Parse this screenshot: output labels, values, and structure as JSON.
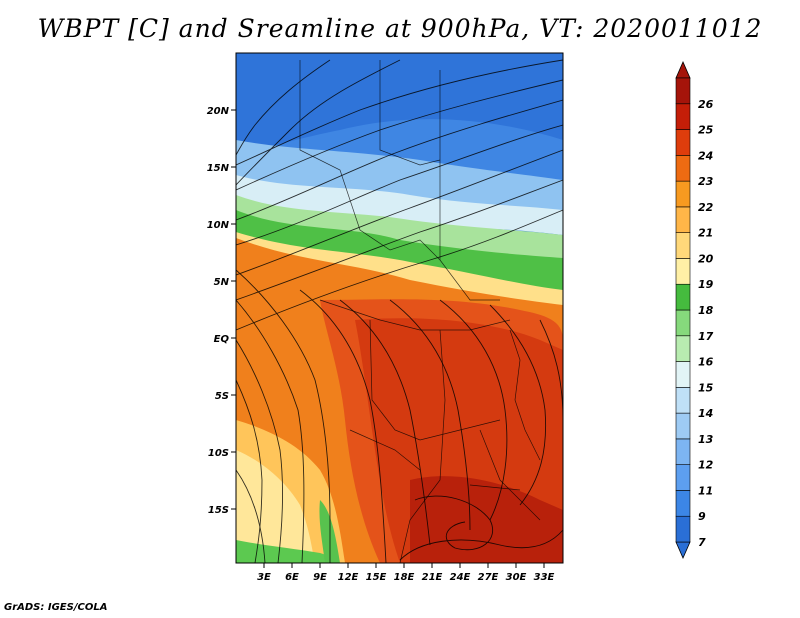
{
  "title": "WBPT [C] and Sreamline at 900hPa, VT: 2020011012",
  "credit": "GrADS: IGES/COLA",
  "map": {
    "lat_labels": [
      "20N",
      "15N",
      "10N",
      "5N",
      "EQ",
      "5S",
      "10S",
      "15S"
    ],
    "lon_labels": [
      "3E",
      "6E",
      "9E",
      "12E",
      "15E",
      "18E",
      "21E",
      "24E",
      "27E",
      "30E",
      "33E"
    ]
  },
  "colorbar": {
    "labels": [
      "7",
      "9",
      "11",
      "12",
      "13",
      "14",
      "15",
      "16",
      "17",
      "18",
      "19",
      "20",
      "21",
      "22",
      "23",
      "24",
      "25",
      "26"
    ],
    "colors": [
      "#2a6fd6",
      "#3c86e6",
      "#5d9ff0",
      "#7db5f2",
      "#9ecbf4",
      "#bfe0f7",
      "#e2f4f6",
      "#b8ecb0",
      "#86d97c",
      "#45bb3e",
      "#fff0a6",
      "#ffd87a",
      "#ffb648",
      "#f79a20",
      "#ee6b12",
      "#de3d0c",
      "#c41e08",
      "#a5140a"
    ]
  }
}
